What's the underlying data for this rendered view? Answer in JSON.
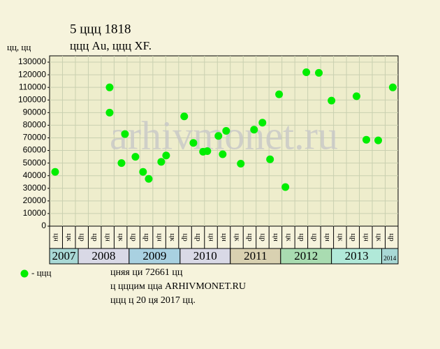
{
  "chart_data": {
    "type": "scatter",
    "title": "5 ццц 1818",
    "subtitle": "ццц Au, ццц XF.",
    "ylabel": "цц, цц",
    "watermark": "arhivmonet.ru",
    "xlim": [
      0,
      27
    ],
    "ylim": [
      0,
      135000
    ],
    "yticks": [
      0,
      10000,
      20000,
      30000,
      40000,
      50000,
      60000,
      70000,
      80000,
      90000,
      100000,
      110000,
      120000,
      130000
    ],
    "grid": true,
    "columns": [
      "цн",
      "цк",
      "цр",
      "цр",
      "цн",
      "цк",
      "цр",
      "цр",
      "цн",
      "цк",
      "цр",
      "цр",
      "цн",
      "цн",
      "цк",
      "цр",
      "цр",
      "цн",
      "цк",
      "цр",
      "цр",
      "цн",
      "цк",
      "цр",
      "цн",
      "цк",
      "цр"
    ],
    "year_bands": [
      {
        "label": "2007",
        "start": 0,
        "end": 2.22,
        "color": "#a9d9d6"
      },
      {
        "label": "2008",
        "start": 2.22,
        "end": 6.16,
        "color": "#d9d9e6"
      },
      {
        "label": "2009",
        "start": 6.16,
        "end": 10.11,
        "color": "#a9d1e1"
      },
      {
        "label": "2010",
        "start": 10.11,
        "end": 14.0,
        "color": "#d9d9e6"
      },
      {
        "label": "2011",
        "start": 14.0,
        "end": 17.9,
        "color": "#d9d1b1"
      },
      {
        "label": "2012",
        "start": 17.9,
        "end": 21.84,
        "color": "#a9dcb1"
      },
      {
        "label": "2013",
        "start": 21.84,
        "end": 25.73,
        "color": "#b1e9d9"
      },
      {
        "label": "2014",
        "start": 25.73,
        "end": 27,
        "color": "#a9d9d6"
      }
    ],
    "series": [
      {
        "name": "- ццц",
        "color": "#00ee00",
        "x": [
          0.43,
          4.65,
          4.65,
          5.57,
          5.84,
          6.65,
          7.24,
          7.68,
          8.65,
          9.03,
          10.43,
          11.14,
          11.89,
          12.22,
          13.08,
          13.41,
          13.68,
          14.81,
          15.84,
          16.49,
          17.08,
          17.78,
          18.27,
          19.89,
          20.86,
          21.84,
          23.78,
          24.54,
          25.46,
          26.59
        ],
        "values": [
          43000,
          110000,
          90000,
          50000,
          73000,
          55000,
          43000,
          37500,
          51000,
          56000,
          87000,
          66000,
          59000,
          59500,
          71500,
          57000,
          75500,
          49500,
          76500,
          82000,
          53000,
          104500,
          31000,
          122000,
          121500,
          99500,
          103000,
          68500,
          68000,
          110000
        ]
      }
    ],
    "notes": [
      "цняя ци 72661 цц",
      "ц цццим цца ARHIVMONET.RU",
      "ццц ц 20 ця 2017 цц."
    ]
  }
}
